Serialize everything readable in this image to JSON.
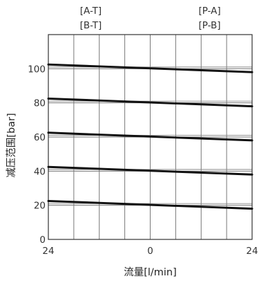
{
  "chart_data": {
    "type": "line",
    "top_labels": [
      {
        "lines": [
          "[A-T]",
          "[B-T]"
        ],
        "x_value": -14
      },
      {
        "lines": [
          "[P-A]",
          "[P-B]"
        ],
        "x_value": 14
      }
    ],
    "xlabel": "流量[l/min]",
    "ylabel": "减压范围[bar]",
    "x_ticks": [
      {
        "value": -24,
        "label": "24"
      },
      {
        "value": 0,
        "label": "0"
      },
      {
        "value": 24,
        "label": "24"
      }
    ],
    "y_ticks": [
      "0",
      "20",
      "40",
      "60",
      "80",
      "100"
    ],
    "xlim": [
      -24,
      24
    ],
    "ylim": [
      0,
      120
    ],
    "grid": true,
    "grid_x_step": 6,
    "grid_y_step": 20,
    "series": [
      {
        "x": [
          -24,
          24
        ],
        "y": [
          22.5,
          18
        ]
      },
      {
        "x": [
          -24,
          24
        ],
        "y": [
          42.5,
          38
        ]
      },
      {
        "x": [
          -24,
          24
        ],
        "y": [
          62.5,
          58
        ]
      },
      {
        "x": [
          -24,
          24
        ],
        "y": [
          82.5,
          78
        ]
      },
      {
        "x": [
          -24,
          24
        ],
        "y": [
          102.5,
          98
        ]
      }
    ]
  }
}
